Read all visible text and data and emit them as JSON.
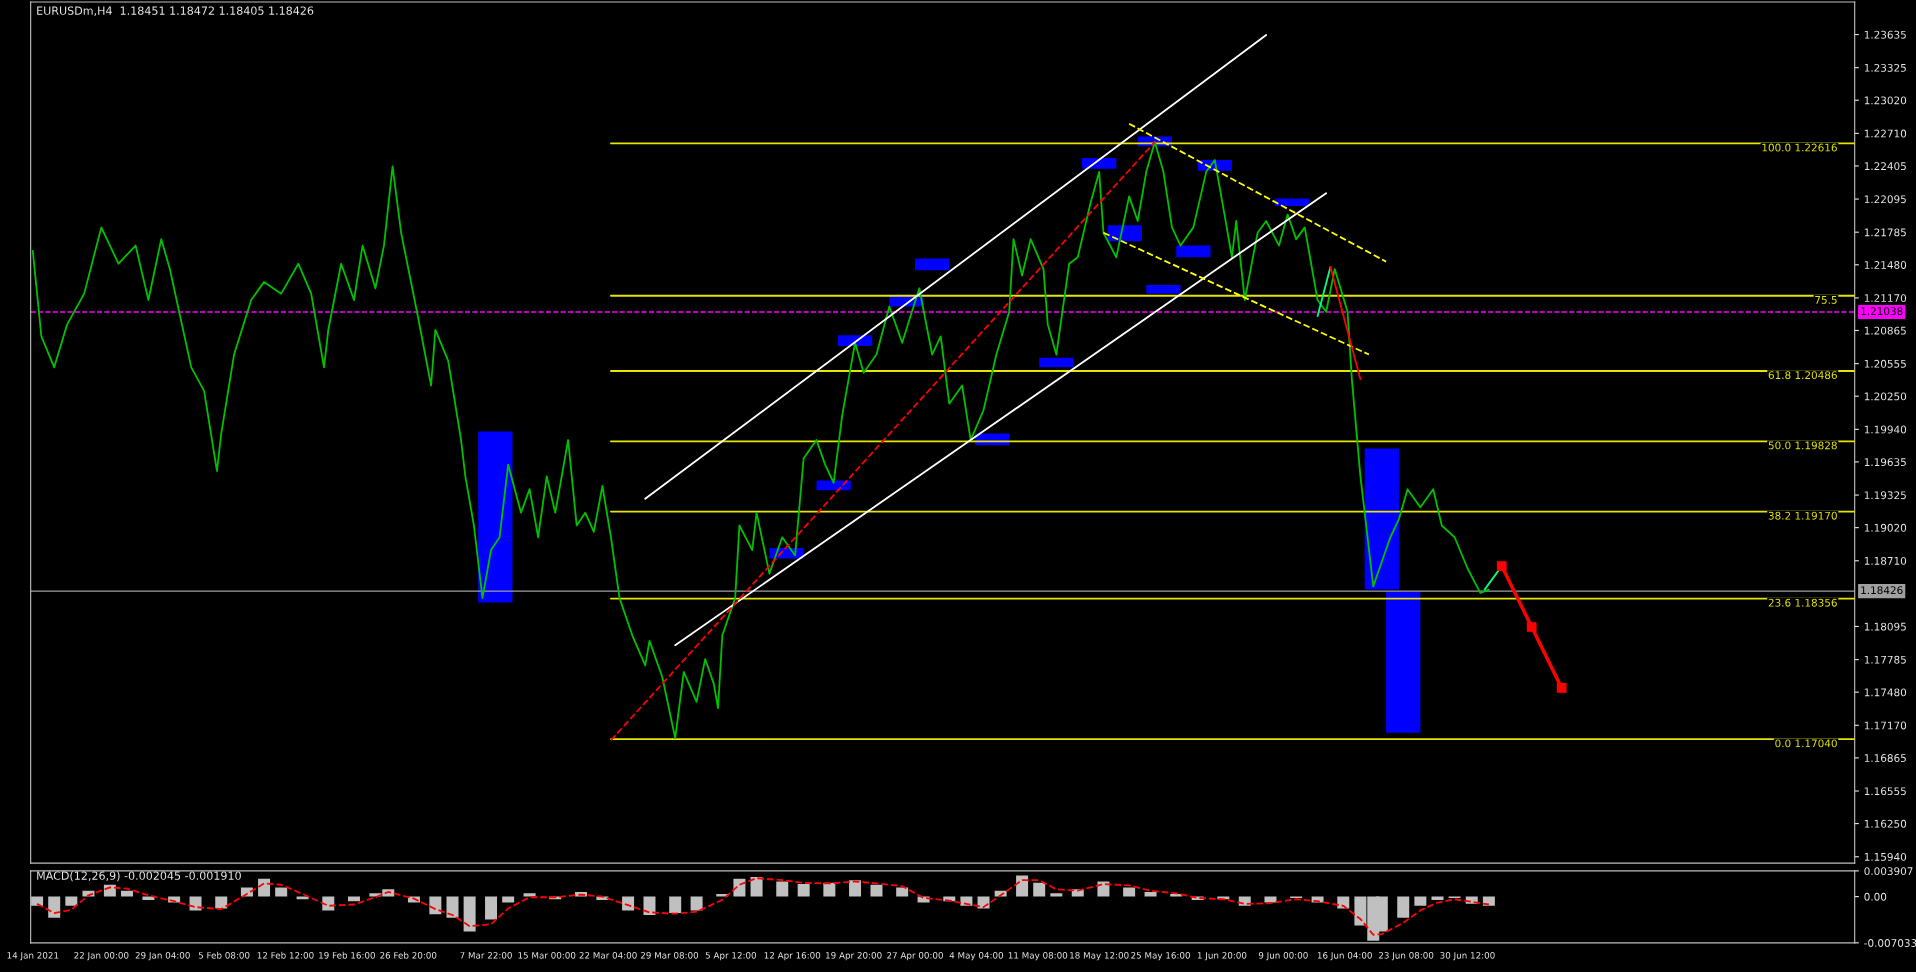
{
  "chart_data": [
    {
      "type": "line",
      "annotations": [
        "EURUSDm,H4  1.18451 1.18472 1.18405 1.18426"
      ],
      "xlim": [
        "2021-01-13T18:00",
        "2021-08-14T17:00"
      ],
      "ylim": [
        1.1588,
        1.2394
      ],
      "tick_labels": "y",
      "yticks": [
        1.23635,
        1.23325,
        {
          "value": 1.2302,
          "label": "1.23020"
        },
        {
          "value": 1.2271,
          "label": "1.22710"
        },
        1.22405,
        1.22095,
        1.21785,
        {
          "value": 1.2148,
          "label": "1.21480"
        },
        {
          "value": 1.2117,
          "label": "1.21170"
        },
        1.20865,
        1.20555,
        {
          "value": 1.2025,
          "label": "1.20250"
        },
        {
          "value": 1.1994,
          "label": "1.19940"
        },
        1.19635,
        1.19325,
        {
          "value": 1.1902,
          "label": "1.19020"
        },
        {
          "value": 1.1871,
          "label": "1.18710"
        },
        1.18095,
        1.17785,
        {
          "value": 1.1748,
          "label": "1.17480"
        },
        {
          "value": 1.1717,
          "label": "1.17170"
        },
        1.16865,
        1.16555,
        {
          "value": 1.1625,
          "label": "1.16250"
        },
        {
          "value": 1.1594,
          "label": "1.15940"
        }
      ],
      "ref_lines": [
        {
          "axis": "y",
          "value": 1.21038,
          "label": "1.21038",
          "color": "#ff00ff",
          "line_style": "dashed"
        },
        {
          "axis": "y",
          "value": 1.18426,
          "label": "1.18426",
          "color": "#a0a0a0",
          "line_style": "solid"
        }
      ],
      "series": [
        {
          "type": "bar",
          "color": "#0000ff",
          "x": [
            "2021-03-09",
            "2021-04-12",
            "2021-04-17T12:00",
            "2021-04-20",
            "2021-04-26",
            "2021-04-29",
            "2021-05-06",
            "2021-05-13T12:00",
            "2021-05-18T12:00",
            "2021-05-21T12:00",
            "2021-05-25",
            "2021-05-26",
            "2021-05-29T12:00",
            "2021-06-01",
            "2021-06-10",
            "2021-06-20T12:00",
            "2021-06-23"
          ],
          "base": [
            1.1832,
            1.1873,
            1.1937,
            1.2072,
            1.2109,
            1.2143,
            1.1979,
            1.2052,
            1.2238,
            1.217,
            1.2259,
            1.2121,
            1.2155,
            1.2236,
            1.2203,
            1.1844,
            1.171
          ],
          "values": [
            0.016,
            0.001,
            0.0009,
            0.001,
            0.0011,
            0.0011,
            0.0011,
            0.0009,
            0.001,
            0.0015,
            0.0009,
            0.0008,
            0.0011,
            0.001,
            0.0007,
            0.0132,
            0.0132
          ]
        },
        {
          "name": "100.0 1.22616",
          "color": "#e6e600",
          "x": [
            "2021-03-22T12:00",
            "2021-08-14T17:00"
          ],
          "values": [
            1.22616,
            1.22616
          ]
        },
        {
          "name": "75.5",
          "color": "#e6e600",
          "x": [
            "2021-03-22T12:00",
            "2021-08-14T17:00"
          ],
          "values": [
            1.2119,
            1.2119
          ]
        },
        {
          "name": "61.8 1.20486",
          "color": "#e6e600",
          "x": [
            "2021-03-22T12:00",
            "2021-08-14T17:00"
          ],
          "values": [
            1.20486,
            1.20486
          ]
        },
        {
          "name": "50.0 1.19828",
          "color": "#e6e600",
          "x": [
            "2021-03-22T12:00",
            "2021-08-14T17:00"
          ],
          "values": [
            1.19828,
            1.19828
          ]
        },
        {
          "name": "38.2 1.19170",
          "color": "#e6e600",
          "x": [
            "2021-03-22T12:00",
            "2021-08-14T17:00"
          ],
          "values": [
            1.1917,
            1.1917
          ]
        },
        {
          "name": "23.6 1.18356",
          "color": "#e6e600",
          "x": [
            "2021-03-22T12:00",
            "2021-08-14T17:00"
          ],
          "values": [
            1.18356,
            1.18356
          ]
        },
        {
          "name": "0.0 1.17040",
          "color": "#e6e600",
          "x": [
            "2021-03-22T12:00",
            "2021-08-14T17:00"
          ],
          "values": [
            1.1704,
            1.1704
          ]
        },
        {
          "color": "#00c000",
          "x": [
            "2021-01-14",
            "2021-01-15",
            "2021-01-16T12:00",
            "2021-01-18",
            "2021-01-20",
            "2021-01-22",
            "2021-01-24",
            "2021-01-26",
            "2021-01-27T12:00",
            "2021-01-29",
            "2021-01-30",
            "2021-02-01T12:00",
            "2021-02-03",
            "2021-02-04T12:00",
            "2021-02-05",
            "2021-02-06T12:00",
            "2021-02-08T12:00",
            "2021-02-10",
            "2021-02-12",
            "2021-02-14",
            "2021-02-15T12:00",
            "2021-02-17",
            "2021-02-17T12:00",
            "2021-02-19",
            "2021-02-20T12:00",
            "2021-02-21T12:00",
            "2021-02-23",
            "2021-02-24",
            "2021-02-25",
            "2021-02-26",
            "2021-02-28",
            "2021-03-01T12:00",
            "2021-03-02",
            "2021-03-03T12:00",
            "2021-03-05",
            "2021-03-05T12:00",
            "2021-03-06T12:00",
            "2021-03-07T12:00",
            "2021-03-08T12:00",
            "2021-03-09T12:00",
            "2021-03-10T12:00",
            "2021-03-12",
            "2021-03-13",
            "2021-03-14",
            "2021-03-15",
            "2021-03-16",
            "2021-03-17T12:00",
            "2021-03-18T12:00",
            "2021-03-19T12:00",
            "2021-03-20T12:00",
            "2021-03-21T12:00",
            "2021-03-22T12:00",
            "2021-03-23T12:00",
            "2021-03-25",
            "2021-03-26T12:00",
            "2021-03-27",
            "2021-03-28T12:00",
            "2021-03-30",
            "2021-03-31",
            "2021-04-01T12:00",
            "2021-04-02T12:00",
            "2021-04-03T12:00",
            "2021-04-04",
            "2021-04-04T12:00",
            "2021-04-06",
            "2021-04-06T12:00",
            "2021-04-08",
            "2021-04-08T12:00",
            "2021-04-10",
            "2021-04-11T12:00",
            "2021-04-13",
            "2021-04-14",
            "2021-04-15T12:00",
            "2021-04-16T12:00",
            "2021-04-17T12:00",
            "2021-04-18T12:00",
            "2021-04-20",
            "2021-04-21",
            "2021-04-22T12:00",
            "2021-04-24",
            "2021-04-25T12:00",
            "2021-04-27T12:00",
            "2021-04-29",
            "2021-04-30",
            "2021-05-01",
            "2021-05-02T12:00",
            "2021-05-03T12:00",
            "2021-05-05",
            "2021-05-06T12:00",
            "2021-05-08",
            "2021-05-08T12:00",
            "2021-05-09T12:00",
            "2021-05-10T12:00",
            "2021-05-12",
            "2021-05-12T12:00",
            "2021-05-13T12:00",
            "2021-05-15",
            "2021-05-16",
            "2021-05-17T12:00",
            "2021-05-18T12:00",
            "2021-05-19",
            "2021-05-20T12:00",
            "2021-05-22",
            "2021-05-23",
            "2021-05-24",
            "2021-05-25",
            "2021-05-26",
            "2021-05-27",
            "2021-05-28",
            "2021-05-29T12:00",
            "2021-05-31",
            "2021-06-01",
            "2021-06-02",
            "2021-06-03",
            "2021-06-03T12:00",
            "2021-06-04T12:00",
            "2021-06-06",
            "2021-06-07",
            "2021-06-08T12:00",
            "2021-06-09T12:00",
            "2021-06-10T12:00",
            "2021-06-11T12:00",
            "2021-06-13",
            "2021-06-14",
            "2021-06-15",
            "2021-06-16T12:00",
            "2021-06-17",
            "2021-06-18",
            "2021-06-18T12:00",
            "2021-06-19T12:00",
            "2021-06-20T12:00",
            "2021-06-21T12:00",
            "2021-06-22T12:00",
            "2021-06-23T12:00",
            "2021-06-25",
            "2021-06-26T12:00",
            "2021-06-27T12:00",
            "2021-06-29",
            "2021-06-30T12:00",
            "2021-07-02",
            "2021-07-03"
          ],
          "values": [
            1.2161,
            1.2081,
            1.2052,
            1.2092,
            1.2121,
            1.2183,
            1.2149,
            1.2166,
            1.2115,
            1.2172,
            1.2144,
            1.2052,
            1.203,
            1.1955,
            1.199,
            1.2064,
            1.2115,
            1.2132,
            1.2121,
            1.2149,
            1.2121,
            1.2052,
            1.2087,
            1.2149,
            1.2115,
            1.2166,
            1.2126,
            1.2166,
            1.224,
            1.2178,
            1.2098,
            1.2035,
            1.2087,
            1.2058,
            1.1984,
            1.195,
            1.1904,
            1.1836,
            1.1881,
            1.1893,
            1.1961,
            1.1916,
            1.1938,
            1.1893,
            1.195,
            1.1916,
            1.1984,
            1.1904,
            1.1916,
            1.1898,
            1.1941,
            1.1893,
            1.1836,
            1.1801,
            1.1773,
            1.1796,
            1.1762,
            1.1705,
            1.1767,
            1.1739,
            1.1779,
            1.1756,
            1.1733,
            1.1801,
            1.1836,
            1.1904,
            1.1881,
            1.1916,
            1.1859,
            1.1893,
            1.1876,
            1.1967,
            1.1984,
            1.1961,
            1.1944,
            1.2007,
            1.2075,
            1.2047,
            1.2064,
            1.2109,
            1.2075,
            1.2126,
            1.2064,
            1.2081,
            1.2018,
            1.2035,
            1.1984,
            1.2012,
            1.2064,
            1.2104,
            1.2172,
            1.2138,
            1.2172,
            1.2144,
            1.2092,
            1.2064,
            1.2149,
            1.2155,
            1.2206,
            1.2235,
            1.2178,
            1.2155,
            1.2212,
            1.2189,
            1.2235,
            1.2263,
            1.2235,
            1.2183,
            1.2166,
            1.2183,
            1.2235,
            1.2246,
            1.2201,
            1.2155,
            1.2189,
            1.2115,
            1.2178,
            1.2189,
            1.2166,
            1.2195,
            1.2172,
            1.2183,
            1.2115,
            1.2104,
            1.2144,
            1.2104,
            1.2041,
            1.195,
            1.1916,
            1.1847,
            1.187,
            1.1893,
            1.191,
            1.1938,
            1.1921,
            1.1938,
            1.1904,
            1.1893,
            1.1864,
            1.1841,
            1.1844
          ]
        },
        {
          "color": "#ffffff",
          "x": [
            "2021-03-26T12:00",
            "2021-06-07"
          ],
          "values": [
            1.1929,
            1.2363
          ]
        },
        {
          "color": "#ffffff",
          "x": [
            "2021-03-30",
            "2021-06-14"
          ],
          "values": [
            1.1792,
            1.2215
          ]
        },
        {
          "color": "#ffff00",
          "line_style": "dashed",
          "x": [
            "2021-05-22",
            "2021-06-21"
          ],
          "values": [
            1.228,
            1.2151
          ]
        },
        {
          "color": "#ffff00",
          "line_style": "dashed",
          "x": [
            "2021-05-19",
            "2021-06-19"
          ],
          "values": [
            1.2178,
            1.2064
          ]
        },
        {
          "color": "#ff0000",
          "line_style": "dashed",
          "x": [
            "2021-03-22T12:00",
            "2021-05-25"
          ],
          "values": [
            1.1703,
            1.2263
          ]
        },
        {
          "color": "#00ff7f",
          "x": [
            "2021-06-13",
            "2021-06-14T12:00"
          ],
          "values": [
            1.21,
            1.2146
          ]
        },
        {
          "color": "#ff0000",
          "x": [
            "2021-06-14T12:00",
            "2021-06-18"
          ],
          "values": [
            1.2146,
            1.2041
          ]
        },
        {
          "color": "#00ff7f",
          "x": [
            "2021-07-02T12:00",
            "2021-07-04T12:00"
          ],
          "values": [
            1.1844,
            1.1866
          ]
        },
        {
          "color": "#ff0000",
          "marker": "square",
          "x": [
            "2021-07-04T12:00",
            "2021-07-08",
            "2021-07-11T12:00"
          ],
          "values": [
            1.1866,
            1.1809,
            1.1752
          ]
        }
      ]
    },
    {
      "type": "bar",
      "annotations": [
        "MACD(12,26,9) -0.002045 -0.001910"
      ],
      "xlim": [
        "2021-01-13T18:00",
        "2021-08-14T17:00"
      ],
      "ylim": [
        -0.007033,
        0.003907
      ],
      "xticks": [
        {
          "value": "2021-01-14",
          "label": "14 Jan 2021"
        },
        {
          "value": "2021-01-22T00:00",
          "label": "22 Jan 00:00"
        },
        {
          "value": "2021-01-29T04:00",
          "label": "29 Jan 04:00"
        },
        {
          "value": "2021-02-05T08:00",
          "label": "5 Feb 08:00"
        },
        {
          "value": "2021-02-12T12:00",
          "label": "12 Feb 12:00"
        },
        {
          "value": "2021-02-19T16:00",
          "label": "19 Feb 16:00"
        },
        {
          "value": "2021-02-26T20:00",
          "label": "26 Feb 20:00"
        },
        {
          "value": "2021-03-07T22:00",
          "label": "7 Mar 22:00"
        },
        {
          "value": "2021-03-15T00:00",
          "label": "15 Mar 00:00"
        },
        {
          "value": "2021-03-22T04:00",
          "label": "22 Mar 04:00"
        },
        {
          "value": "2021-03-29T08:00",
          "label": "29 Mar 08:00"
        },
        {
          "value": "2021-04-05T12:00",
          "label": "5 Apr 12:00"
        },
        {
          "value": "2021-04-12T16:00",
          "label": "12 Apr 16:00"
        },
        {
          "value": "2021-04-19T20:00",
          "label": "19 Apr 20:00"
        },
        {
          "value": "2021-04-27T00:00",
          "label": "27 Apr 00:00"
        },
        {
          "value": "2021-05-04T04:00",
          "label": "4 May 04:00"
        },
        {
          "value": "2021-05-11T08:00",
          "label": "11 May 08:00"
        },
        {
          "value": "2021-05-18T12:00",
          "label": "18 May 12:00"
        },
        {
          "value": "2021-05-25T16:00",
          "label": "25 May 16:00"
        },
        {
          "value": "2021-06-01T20:00",
          "label": "1 Jun 20:00"
        },
        {
          "value": "2021-06-09T00:00",
          "label": "9 Jun 00:00"
        },
        {
          "value": "2021-06-16T04:00",
          "label": "16 Jun 04:00"
        },
        {
          "value": "2021-06-23T08:00",
          "label": "23 Jun 08:00"
        },
        {
          "value": "2021-06-30T12:00",
          "label": "30 Jun 12:00"
        }
      ],
      "yticks": [
        0.003907,
        {
          "value": 0,
          "label": "0.00"
        },
        -0.007033
      ],
      "series": [
        {
          "color": "#c0c0c0",
          "x": [
            "2021-01-14T12:00",
            "2021-01-16T12:00",
            "2021-01-18T12:00",
            "2021-01-20T12:00",
            "2021-01-23",
            "2021-01-25",
            "2021-01-27T12:00",
            "2021-01-30T12:00",
            "2021-02-02",
            "2021-02-05",
            "2021-02-08",
            "2021-02-10",
            "2021-02-12",
            "2021-02-14T12:00",
            "2021-02-17T12:00",
            "2021-02-20T12:00",
            "2021-02-23",
            "2021-02-24T12:00",
            "2021-02-27T12:00",
            "2021-03-02",
            "2021-03-04",
            "2021-03-06",
            "2021-03-08T12:00",
            "2021-03-10T12:00",
            "2021-03-13",
            "2021-03-16",
            "2021-03-19",
            "2021-03-21T12:00",
            "2021-03-24T12:00",
            "2021-03-27",
            "2021-03-30",
            "2021-04-01T12:00",
            "2021-04-04T12:00",
            "2021-04-06T12:00",
            "2021-04-08T12:00",
            "2021-04-11T12:00",
            "2021-04-14",
            "2021-04-17",
            "2021-04-20",
            "2021-04-22T12:00",
            "2021-04-25T12:00",
            "2021-04-28",
            "2021-05-01",
            "2021-05-03",
            "2021-05-05",
            "2021-05-07",
            "2021-05-09T12:00",
            "2021-05-11T12:00",
            "2021-05-13T12:00",
            "2021-05-16",
            "2021-05-19",
            "2021-05-22",
            "2021-05-24T12:00",
            "2021-05-27T12:00",
            "2021-05-30",
            "2021-06-02",
            "2021-06-04T12:00",
            "2021-06-07T12:00",
            "2021-06-10T12:00",
            "2021-06-13",
            "2021-06-16",
            "2021-06-18",
            "2021-06-19T12:00",
            "2021-06-20T12:00",
            "2021-06-23",
            "2021-06-25",
            "2021-06-27",
            "2021-06-29",
            "2021-07-01",
            "2021-07-03"
          ],
          "values": [
            -0.0014,
            -0.0032,
            -0.0014,
            0.0009,
            0.0018,
            0.0009,
            -0.0005,
            -0.0009,
            -0.0021,
            -0.0018,
            0.0014,
            0.0027,
            0.0014,
            -0.0004,
            -0.0021,
            -0.0007,
            0.0005,
            0.0011,
            -0.0009,
            -0.0027,
            -0.0032,
            -0.0053,
            -0.0035,
            -0.0009,
            0.0005,
            -0.0004,
            0.0007,
            -0.0005,
            -0.0021,
            -0.0028,
            -0.0025,
            -0.0021,
            0.0004,
            0.0027,
            0.003,
            0.0023,
            0.0019,
            0.0021,
            0.0025,
            0.0018,
            0.0014,
            -0.0009,
            -0.0007,
            -0.0014,
            -0.0018,
            0.0009,
            0.0032,
            0.0021,
            0.0005,
            0.0011,
            0.0023,
            0.0014,
            0.0007,
            0.0004,
            -0.0005,
            -0.0004,
            -0.0014,
            -0.0009,
            -0.0002,
            -0.0009,
            -0.0018,
            -0.0044,
            -0.0067,
            -0.0053,
            -0.0032,
            -0.0014,
            -0.0005,
            -0.0002,
            -0.0011,
            -0.0014
          ]
        },
        {
          "type": "line",
          "color": "#ff0000",
          "line_style": "dashed",
          "x": [
            "2021-01-14T12:00",
            "2021-01-16T12:00",
            "2021-01-18T12:00",
            "2021-01-20T12:00",
            "2021-01-23",
            "2021-01-25",
            "2021-01-27T12:00",
            "2021-01-30T12:00",
            "2021-02-02",
            "2021-02-05",
            "2021-02-08",
            "2021-02-10",
            "2021-02-12",
            "2021-02-14T12:00",
            "2021-02-17T12:00",
            "2021-02-20T12:00",
            "2021-02-23",
            "2021-02-24T12:00",
            "2021-02-27T12:00",
            "2021-03-02",
            "2021-03-04",
            "2021-03-06",
            "2021-03-08T12:00",
            "2021-03-10T12:00",
            "2021-03-13",
            "2021-03-16",
            "2021-03-19",
            "2021-03-21T12:00",
            "2021-03-24T12:00",
            "2021-03-27",
            "2021-03-30",
            "2021-04-01T12:00",
            "2021-04-04T12:00",
            "2021-04-06T12:00",
            "2021-04-08T12:00",
            "2021-04-11T12:00",
            "2021-04-14",
            "2021-04-17",
            "2021-04-20",
            "2021-04-22T12:00",
            "2021-04-25T12:00",
            "2021-04-28",
            "2021-05-01",
            "2021-05-03",
            "2021-05-05",
            "2021-05-07",
            "2021-05-09T12:00",
            "2021-05-11T12:00",
            "2021-05-13T12:00",
            "2021-05-16",
            "2021-05-19",
            "2021-05-22",
            "2021-05-24T12:00",
            "2021-05-27T12:00",
            "2021-05-30",
            "2021-06-02",
            "2021-06-04T12:00",
            "2021-06-07T12:00",
            "2021-06-10T12:00",
            "2021-06-13",
            "2021-06-16",
            "2021-06-18",
            "2021-06-19T12:00",
            "2021-06-20T12:00",
            "2021-06-23",
            "2021-06-25",
            "2021-06-27",
            "2021-06-29",
            "2021-07-01",
            "2021-07-03"
          ],
          "values": [
            -0.0011,
            -0.0025,
            -0.002,
            0.0002,
            0.0014,
            0.0012,
            0.0002,
            -0.0007,
            -0.0016,
            -0.0019,
            0.0004,
            0.002,
            0.0018,
            0.0004,
            -0.0014,
            -0.0012,
            -0.0001,
            0.0007,
            -0.0003,
            -0.0019,
            -0.0028,
            -0.0045,
            -0.0042,
            -0.0018,
            -0.0001,
            -0.0001,
            0.0003,
            0,
            -0.0013,
            -0.0024,
            -0.0026,
            -0.0023,
            -0.0005,
            0.0018,
            0.0028,
            0.0025,
            0.0021,
            0.002,
            0.0023,
            0.002,
            0.0016,
            -0.0002,
            -0.0006,
            -0.0011,
            -0.0016,
            0.0002,
            0.0025,
            0.0025,
            0.0011,
            0.0009,
            0.0019,
            0.0017,
            0.0009,
            0.0005,
            -0.0002,
            -0.0004,
            -0.0011,
            -0.001,
            -0.0004,
            -0.0007,
            -0.0014,
            -0.0034,
            -0.0058,
            -0.0057,
            -0.004,
            -0.0021,
            -0.0009,
            -0.0004,
            -0.0008,
            -0.0012
          ]
        }
      ]
    }
  ]
}
